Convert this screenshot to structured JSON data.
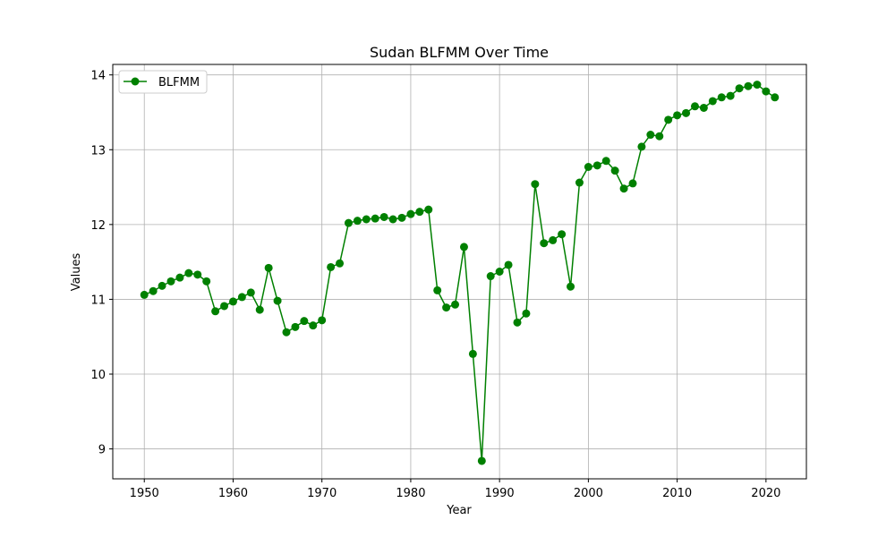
{
  "chart_data": {
    "type": "line",
    "title": "Sudan BLFMM Over Time",
    "xlabel": "Year",
    "ylabel": "Values",
    "xlim": [
      1946.45,
      2024.55
    ],
    "ylim": [
      8.6,
      14.14
    ],
    "xticks": [
      1950,
      1960,
      1970,
      1980,
      1990,
      2000,
      2010,
      2020
    ],
    "yticks": [
      9,
      10,
      11,
      12,
      13,
      14
    ],
    "grid": true,
    "legend_position": "top-left",
    "series": [
      {
        "name": "BLFMM",
        "color": "#008000",
        "marker": "circle",
        "x": [
          1950,
          1951,
          1952,
          1953,
          1954,
          1955,
          1956,
          1957,
          1958,
          1959,
          1960,
          1961,
          1962,
          1963,
          1964,
          1965,
          1966,
          1967,
          1968,
          1969,
          1970,
          1971,
          1972,
          1973,
          1974,
          1975,
          1976,
          1977,
          1978,
          1979,
          1980,
          1981,
          1982,
          1983,
          1984,
          1985,
          1986,
          1987,
          1988,
          1989,
          1990,
          1991,
          1992,
          1993,
          1994,
          1995,
          1996,
          1997,
          1998,
          1999,
          2000,
          2001,
          2002,
          2003,
          2004,
          2005,
          2006,
          2007,
          2008,
          2009,
          2010,
          2011,
          2012,
          2013,
          2014,
          2015,
          2016,
          2017,
          2018,
          2019,
          2020,
          2021
        ],
        "y": [
          11.06,
          11.11,
          11.18,
          11.24,
          11.29,
          11.35,
          11.33,
          11.24,
          10.84,
          10.91,
          10.97,
          11.03,
          11.09,
          10.86,
          11.42,
          10.98,
          10.56,
          10.63,
          10.71,
          10.65,
          10.72,
          11.43,
          11.48,
          12.02,
          12.05,
          12.07,
          12.08,
          12.1,
          12.07,
          12.09,
          12.14,
          12.17,
          12.2,
          11.12,
          10.89,
          10.93,
          11.7,
          10.27,
          8.84,
          11.31,
          11.37,
          11.46,
          10.69,
          10.81,
          12.54,
          11.75,
          11.79,
          11.87,
          11.17,
          12.56,
          12.77,
          12.79,
          12.85,
          12.72,
          12.48,
          12.55,
          13.04,
          13.2,
          13.18,
          13.4,
          13.46,
          13.49,
          13.58,
          13.56,
          13.65,
          13.7,
          13.72,
          13.82,
          13.85,
          13.87,
          13.78,
          13.7
        ]
      }
    ]
  }
}
